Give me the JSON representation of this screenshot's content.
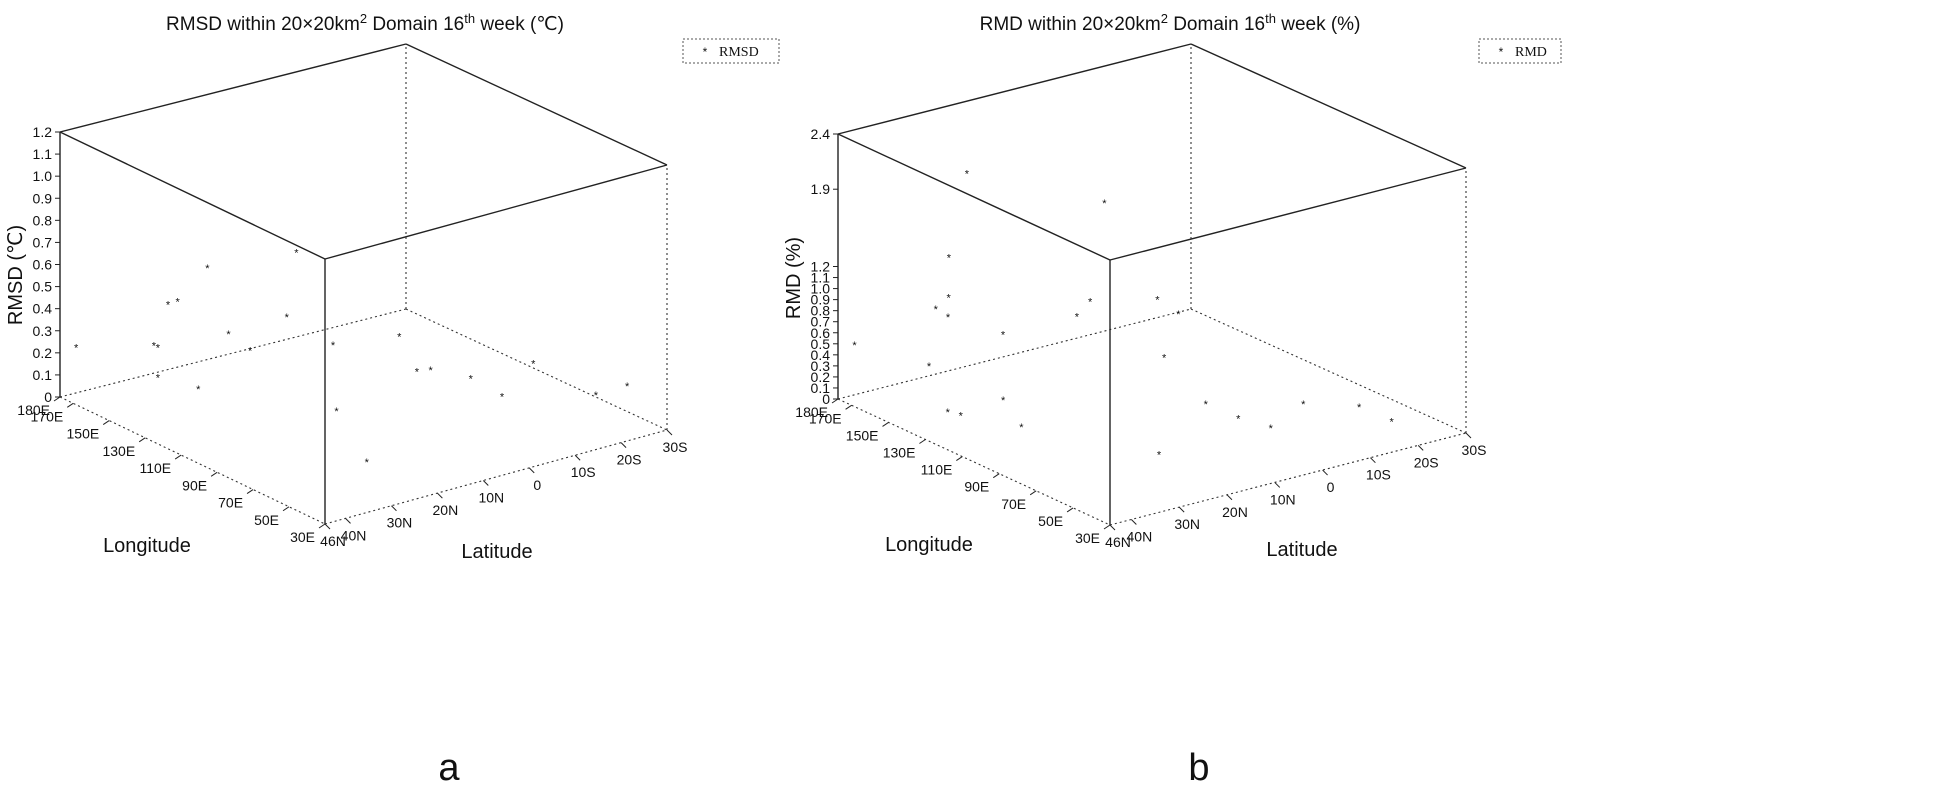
{
  "chart_data": [
    {
      "type": "scatter",
      "title": {
        "pre": "RMSD within 20×20km",
        "sup1": "2",
        "mid": " Domain 16",
        "sup2": "th",
        "post": " week (℃)"
      },
      "xlabel": "Longitude",
      "ylabel": "Latitude",
      "zlabel": "RMSD (℃)",
      "zlim": [
        0,
        1.2
      ],
      "z_ticks": [
        "0",
        "0.1",
        "0.2",
        "0.3",
        "0.4",
        "0.5",
        "0.6",
        "0.7",
        "0.8",
        "0.9",
        "1.0",
        "1.1",
        "1.2"
      ],
      "lon_ticks": [
        "180E",
        "170E",
        "150E",
        "130E",
        "110E",
        "90E",
        "70E",
        "50E",
        "30E"
      ],
      "lat_ticks": [
        "46N",
        "40N",
        "30N",
        "20N",
        "10N",
        "0",
        "10S",
        "20S",
        "30S"
      ],
      "legend": {
        "label": "RMSD",
        "position": "top-right"
      },
      "panel_label": "a",
      "points": [
        {
          "lon": 176,
          "lat": 44,
          "z": 0.23
        },
        {
          "lon": 160,
          "lat": 30,
          "z": 0.41
        },
        {
          "lon": 158,
          "lat": 33,
          "z": 0.24
        },
        {
          "lon": 152,
          "lat": 31,
          "z": 0.46
        },
        {
          "lon": 150,
          "lat": 37,
          "z": 0.3
        },
        {
          "lon": 148,
          "lat": 26,
          "z": 0.6
        },
        {
          "lon": 140,
          "lat": 40,
          "z": 0.21
        },
        {
          "lon": 130,
          "lat": 35,
          "z": 0.17
        },
        {
          "lon": 100,
          "lat": 40,
          "z": 0.56
        },
        {
          "lon": 98,
          "lat": 36,
          "z": 0.47
        },
        {
          "lon": 118,
          "lat": 18,
          "z": 0.74
        },
        {
          "lon": 108,
          "lat": 24,
          "z": 0.52
        },
        {
          "lon": 92,
          "lat": 20,
          "z": 0.43
        },
        {
          "lon": 80,
          "lat": 10,
          "z": 0.46
        },
        {
          "lon": 75,
          "lat": 5,
          "z": 0.3
        },
        {
          "lon": 70,
          "lat": 10,
          "z": 0.34
        },
        {
          "lon": 65,
          "lat": 0,
          "z": 0.27
        },
        {
          "lon": 60,
          "lat": -5,
          "z": 0.18
        },
        {
          "lon": 55,
          "lat": -10,
          "z": 0.32
        },
        {
          "lon": 45,
          "lat": -20,
          "z": 0.16
        },
        {
          "lon": 40,
          "lat": -25,
          "z": 0.19
        },
        {
          "lon": 90,
          "lat": 20,
          "z": 0.14
        },
        {
          "lon": 60,
          "lat": 25,
          "z": 0.05
        }
      ]
    },
    {
      "type": "scatter",
      "title": {
        "pre": "RMD within 20×20km",
        "sup1": "2",
        "mid": " Domain 16",
        "sup2": "th",
        "post": " week (%)"
      },
      "xlabel": "Longitude",
      "ylabel": "Latitude",
      "zlabel": "RMD (%)",
      "zlim": [
        0,
        2.4
      ],
      "z_ticks": [
        "0",
        "0.1",
        "0.2",
        "0.3",
        "0.4",
        "0.5",
        "0.6",
        "0.7",
        "0.8",
        "0.9",
        "1.0",
        "1.1",
        "1.2",
        "1.9",
        "2.4"
      ],
      "lon_ticks": [
        "180E",
        "170E",
        "150E",
        "130E",
        "110E",
        "90E",
        "70E",
        "50E",
        "30E"
      ],
      "lat_ticks": [
        "46N",
        "40N",
        "30N",
        "20N",
        "10N",
        "0",
        "10S",
        "20S",
        "30S"
      ],
      "legend": {
        "label": "RMD",
        "position": "top-right"
      },
      "panel_label": "b",
      "points": [
        {
          "lon": 176,
          "lat": 44,
          "z": 0.5
        },
        {
          "lon": 165,
          "lat": 28,
          "z": 1.2
        },
        {
          "lon": 162,
          "lat": 32,
          "z": 0.8
        },
        {
          "lon": 160,
          "lat": 30,
          "z": 0.9
        },
        {
          "lon": 158,
          "lat": 35,
          "z": 0.35
        },
        {
          "lon": 150,
          "lat": 30,
          "z": 2.1
        },
        {
          "lon": 145,
          "lat": 36,
          "z": 0.9
        },
        {
          "lon": 140,
          "lat": 38,
          "z": 0.1
        },
        {
          "lon": 138,
          "lat": 36,
          "z": 0.06
        },
        {
          "lon": 130,
          "lat": 30,
          "z": 0.2
        },
        {
          "lon": 125,
          "lat": 32,
          "z": 0.85
        },
        {
          "lon": 110,
          "lat": 22,
          "z": 1.02
        },
        {
          "lon": 100,
          "lat": 20,
          "z": 2.1
        },
        {
          "lon": 95,
          "lat": 25,
          "z": 1.3
        },
        {
          "lon": 85,
          "lat": 10,
          "z": 1.1
        },
        {
          "lon": 80,
          "lat": 15,
          "z": 0.8
        },
        {
          "lon": 70,
          "lat": 10,
          "z": 0.4
        },
        {
          "lon": 65,
          "lat": 5,
          "z": 0.25
        },
        {
          "lon": 60,
          "lat": 0,
          "z": 0.15
        },
        {
          "lon": 55,
          "lat": -5,
          "z": 0.35
        },
        {
          "lon": 50,
          "lat": -15,
          "z": 0.25
        },
        {
          "lon": 45,
          "lat": -20,
          "z": 0.1
        },
        {
          "lon": 70,
          "lat": 20,
          "z": 0.05
        },
        {
          "lon": 120,
          "lat": 30,
          "z": 0.03
        },
        {
          "lon": 58,
          "lat": 25,
          "z": 1.6
        }
      ]
    }
  ]
}
